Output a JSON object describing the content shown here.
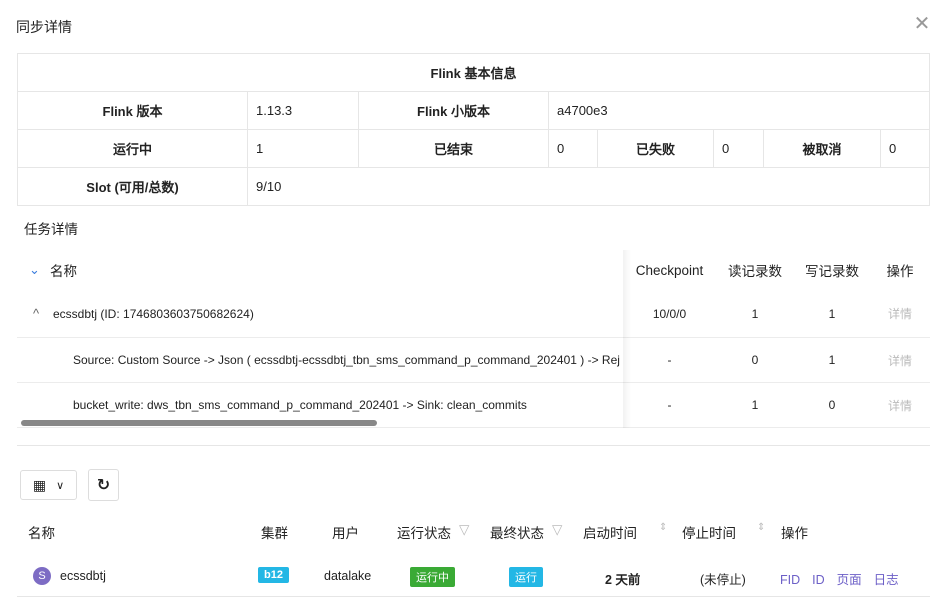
{
  "dialog": {
    "title": "同步详情",
    "close_icon": "close-icon"
  },
  "flink_info": {
    "header": "Flink 基本信息",
    "version_label": "Flink 版本",
    "version": "1.13.3",
    "minor_label": "Flink 小版本",
    "minor": "a4700e3",
    "running_label": "运行中",
    "running": "1",
    "finished_label": "已结束",
    "finished": "0",
    "failed_label": "已失败",
    "failed": "0",
    "cancelled_label": "被取消",
    "cancelled": "0",
    "slot_label": "Slot (可用/总数)",
    "slot": "9/10"
  },
  "task_section": {
    "title": "任务详情",
    "columns": [
      "名称",
      "Checkpoint",
      "读记录数",
      "写记录数",
      "操作"
    ],
    "rows": [
      {
        "name": "ecssdbtj (ID: 1746803603750682624)",
        "checkpoint": "10/0/0",
        "read": "1",
        "write": "1",
        "action": "详情"
      },
      {
        "name": "Source: Custom Source -> Json ( ecssdbtj-ecssdbtj_tbn_sms_command_p_command_202401 ) -> Rej",
        "checkpoint": "-",
        "read": "0",
        "write": "1",
        "action": "详情"
      },
      {
        "name": "bucket_write: dws_tbn_sms_command_p_command_202401 -> Sink: clean_commits",
        "checkpoint": "-",
        "read": "1",
        "write": "0",
        "action": "详情"
      }
    ]
  },
  "jobs": {
    "columns": [
      "名称",
      "集群",
      "用户",
      "运行状态",
      "最终状态",
      "启动时间",
      "停止时间",
      "操作"
    ],
    "rows": [
      {
        "avatar": "S",
        "name": "ecssdbtj",
        "cluster": "b12",
        "user": "datalake",
        "run_state": "运行中",
        "final_state": "运行",
        "start": "2 天前",
        "stop": "(未停止)",
        "actions": [
          "FID",
          "ID",
          "页面",
          "日志"
        ]
      }
    ]
  },
  "colors": {
    "accent": "#6c5fc7",
    "cluster_tag": "#23b7e5",
    "running_tag": "#3aaa35",
    "final_tag": "#23b7e5"
  }
}
